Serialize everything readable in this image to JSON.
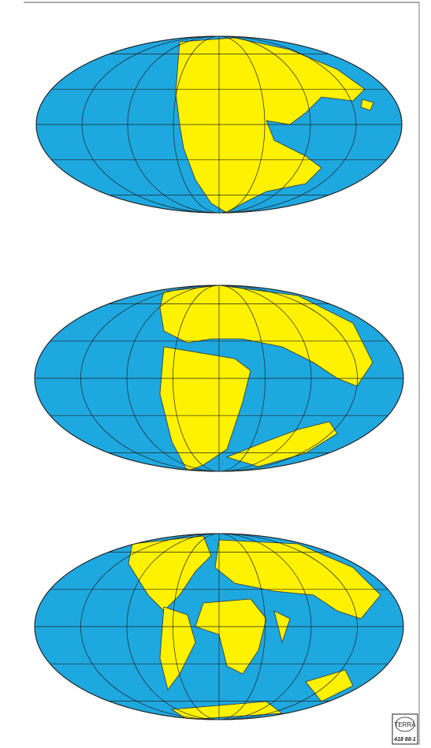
{
  "logo": {
    "name": "TERRA",
    "code": "418 88-1"
  }
}
